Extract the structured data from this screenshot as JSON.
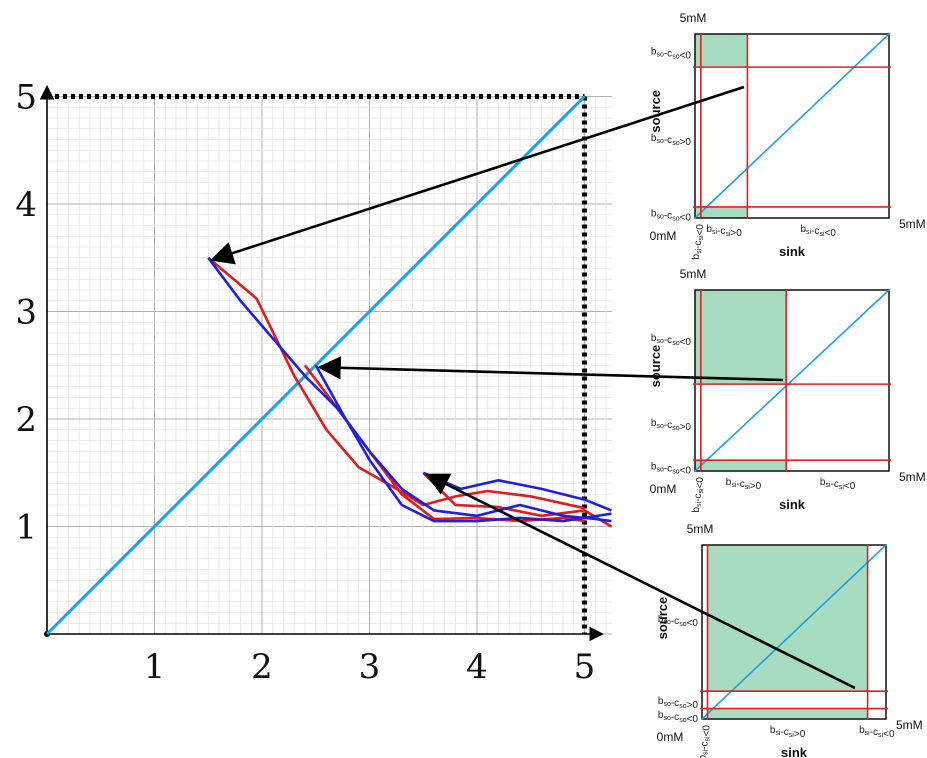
{
  "colors": {
    "diagonal": "#1aa3e0",
    "series_red": "#e41a1c",
    "series_blue": "#1f1fe0",
    "threshold": "#e02020",
    "region_fill": "#a8dcc0",
    "arrow": "#000000",
    "grid_major": "#b0b0b0",
    "grid_minor": "#e2e2e2"
  },
  "chart_data": {
    "type": "line",
    "title": "",
    "xlabel": "",
    "ylabel": "",
    "xlim": [
      0,
      5
    ],
    "ylim": [
      0,
      5
    ],
    "xticks": [
      "1",
      "2",
      "3",
      "4",
      "5"
    ],
    "yticks": [
      "1",
      "2",
      "3",
      "4",
      "5"
    ],
    "grid": true,
    "reference_line": {
      "x": [
        0,
        5
      ],
      "y": [
        0,
        5
      ]
    },
    "series": [
      {
        "color": "red",
        "x": [
          1.5,
          1.95,
          2.3,
          2.6,
          2.9,
          3.2,
          3.5,
          3.8,
          4.1,
          4.5,
          5.0
        ],
        "y": [
          3.5,
          3.12,
          2.4,
          1.9,
          1.55,
          1.38,
          1.2,
          1.28,
          1.33,
          1.28,
          1.17
        ]
      },
      {
        "color": "red",
        "x": [
          2.4,
          2.7,
          3.0,
          3.3,
          3.6,
          4.0,
          4.4,
          4.8,
          5.0
        ],
        "y": [
          2.5,
          2.1,
          1.7,
          1.3,
          1.07,
          1.08,
          1.05,
          1.08,
          1.05
        ]
      },
      {
        "color": "red",
        "x": [
          3.5,
          3.8,
          4.2,
          4.6,
          5.0,
          5.25
        ],
        "y": [
          1.5,
          1.2,
          1.18,
          1.1,
          1.15,
          1.0
        ]
      },
      {
        "color": "blue",
        "x": [
          1.5,
          1.8,
          2.1,
          2.4,
          2.7,
          3.0,
          3.3,
          3.6,
          4.0,
          4.4,
          4.8,
          5.1,
          5.25
        ],
        "y": [
          3.5,
          3.1,
          2.75,
          2.4,
          2.1,
          1.7,
          1.35,
          1.15,
          1.1,
          1.2,
          1.1,
          1.07,
          1.05
        ]
      },
      {
        "color": "blue",
        "x": [
          2.5,
          2.75,
          3.0,
          3.3,
          3.6,
          4.0,
          4.4,
          4.8,
          5.25
        ],
        "y": [
          2.5,
          2.05,
          1.62,
          1.2,
          1.05,
          1.05,
          1.08,
          1.05,
          1.12
        ]
      },
      {
        "color": "blue",
        "x": [
          3.5,
          3.85,
          4.2,
          4.6,
          5.0,
          5.25
        ],
        "y": [
          1.5,
          1.35,
          1.43,
          1.35,
          1.25,
          1.15
        ]
      }
    ],
    "insets": [
      {
        "top_label": "5mM",
        "bottom_label": "0mM",
        "right_label": "5mM",
        "ylabel": "source",
        "xlabel": "sink",
        "left_labels": [
          "b<sub>so</sub>-c<sub>so</sub><0",
          "b<sub>so</sub>-c<sub>so</sub>>0",
          "b<sub>so</sub>-c<sub>so</sub><0"
        ],
        "bottom_labels": [
          "b<sub>si</sub>-c<sub>si</sub><0",
          "b<sub>si</sub>-c<sub>si</sub>>0",
          "b<sub>si</sub>-c<sub>si</sub><0"
        ],
        "steady_state": [
          1.5,
          3.5
        ]
      },
      {
        "top_label": "5mM",
        "bottom_label": "0mM",
        "right_label": "5mM",
        "ylabel": "source",
        "xlabel": "sink",
        "left_labels": [
          "b<sub>so</sub>-c<sub>so</sub><0",
          "b<sub>so</sub>-c<sub>so</sub>>0",
          "b<sub>so</sub>-c<sub>so</sub><0"
        ],
        "bottom_labels": [
          "b<sub>si</sub>-c<sub>si</sub><0",
          "b<sub>si</sub>-c<sub>si</sub>>0",
          "b<sub>si</sub>-c<sub>si</sub><0"
        ],
        "steady_state": [
          2.5,
          2.5
        ]
      },
      {
        "top_label": "5mM",
        "bottom_label": "0mM",
        "right_label": "5mM",
        "ylabel": "source",
        "xlabel": "sink",
        "left_labels": [
          "b<sub>so</sub>-c<sub>so</sub><0",
          "b<sub>so</sub>-c<sub>so</sub>>0",
          "b<sub>so</sub>-c<sub>so</sub><0"
        ],
        "bottom_labels": [
          "b<sub>si</sub>-c<sub>si</sub><0",
          "b<sub>si</sub>-c<sub>si</sub>>0",
          "b<sub>si</sub>-c<sub>si</sub><0"
        ],
        "steady_state": [
          3.5,
          1.5
        ]
      }
    ]
  }
}
